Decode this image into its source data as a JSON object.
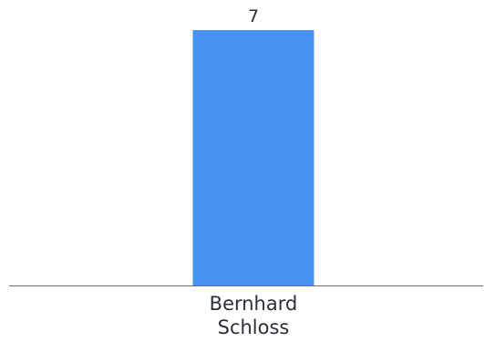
{
  "chart_data": {
    "type": "bar",
    "categories": [
      "Bernhard Schloss"
    ],
    "category_lines": [
      [
        "Bernhard",
        "Schloss"
      ]
    ],
    "values": [
      7
    ],
    "ylim": [
      0,
      7
    ],
    "grid": false,
    "data_labels": true,
    "colors": {
      "bar": "#4592f0",
      "axis": "#6b6f75",
      "text": "#2b2f36"
    }
  }
}
